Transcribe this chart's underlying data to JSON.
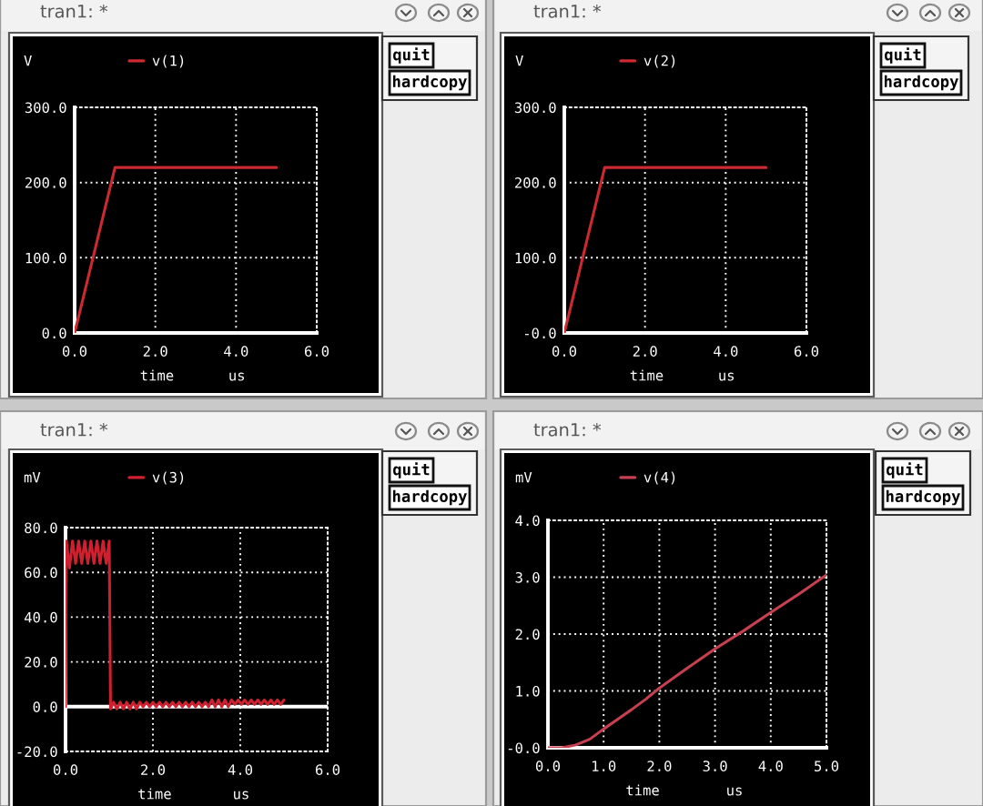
{
  "chart_data": [
    {
      "type": "line",
      "title": "tran1: *",
      "ylabel": "V",
      "xlabel": "time",
      "annotations": [
        "us",
        "quit",
        "hardcopy"
      ],
      "legend": "top",
      "grid": true,
      "x": [
        0,
        1.0,
        5.0
      ],
      "series": [
        {
          "name": "v(1)",
          "color": "#cc2a30",
          "values": [
            0,
            220,
            220
          ]
        }
      ],
      "xlim": [
        0,
        6
      ],
      "xticks": [
        {
          "value": 0,
          "label": "0.0"
        },
        {
          "value": 2,
          "label": "2.0"
        },
        {
          "value": 4,
          "label": "4.0"
        },
        {
          "value": 6,
          "label": "6.0"
        }
      ],
      "ylim": [
        0,
        300
      ],
      "yticks": [
        {
          "value": 0,
          "label": "0.0"
        },
        {
          "value": 100,
          "label": "100.0"
        },
        {
          "value": 200,
          "label": "200.0"
        },
        {
          "value": 300,
          "label": "300.0"
        }
      ]
    },
    {
      "type": "line",
      "title": "tran1: *",
      "ylabel": "V",
      "xlabel": "time",
      "annotations": [
        "us",
        "quit",
        "hardcopy"
      ],
      "legend": "top",
      "grid": true,
      "x": [
        0,
        1.0,
        5.0
      ],
      "series": [
        {
          "name": "v(2)",
          "color": "#cc2a30",
          "values": [
            0,
            220,
            220
          ]
        }
      ],
      "xlim": [
        0,
        6
      ],
      "xticks": [
        {
          "value": 0,
          "label": "0.0"
        },
        {
          "value": 2,
          "label": "2.0"
        },
        {
          "value": 4,
          "label": "4.0"
        },
        {
          "value": 6,
          "label": "6.0"
        }
      ],
      "ylim": [
        0,
        300
      ],
      "yticks": [
        {
          "value": 0,
          "label": "-0.0"
        },
        {
          "value": 100,
          "label": "100.0"
        },
        {
          "value": 200,
          "label": "200.0"
        },
        {
          "value": 300,
          "label": "300.0"
        }
      ]
    },
    {
      "type": "line",
      "title": "tran1: *",
      "ylabel": "mV",
      "xlabel": "time",
      "annotations": [
        "us",
        "quit",
        "hardcopy"
      ],
      "legend": "top",
      "grid": true,
      "x": [
        0,
        0.02,
        0.09,
        0.16,
        0.23,
        0.3,
        0.37,
        0.44,
        0.51,
        0.58,
        0.65,
        0.72,
        0.79,
        0.86,
        0.93,
        1.0,
        1.03,
        1.1,
        1.175,
        1.25,
        1.325,
        1.4,
        1.475,
        1.55,
        1.625,
        1.7,
        1.775,
        1.85,
        1.925,
        2.0,
        2.075,
        2.15,
        2.225,
        2.3,
        2.375,
        2.45,
        2.525,
        2.6,
        2.675,
        2.75,
        2.825,
        2.9,
        2.975,
        3.05,
        3.125,
        3.2,
        3.275,
        3.35,
        3.425,
        3.5,
        3.575,
        3.65,
        3.725,
        3.8,
        3.875,
        3.95,
        4.025,
        4.1,
        4.175,
        4.25,
        4.325,
        4.4,
        4.475,
        4.55,
        4.625,
        4.7,
        4.775,
        4.85,
        4.925,
        5.0
      ],
      "series": [
        {
          "name": "v(3)",
          "color": "#d02030",
          "values": [
            0,
            74,
            62,
            74,
            64,
            74,
            64,
            74,
            64,
            74,
            64,
            74,
            64,
            74,
            64,
            74,
            -1,
            2,
            -1,
            2,
            -1,
            2,
            -1,
            2,
            -1,
            2,
            0,
            2,
            0,
            2,
            0,
            2,
            0,
            2,
            0,
            2,
            0,
            2,
            0,
            2,
            0,
            2,
            0,
            2,
            0,
            2,
            0,
            3,
            0,
            3,
            0,
            3,
            0,
            3,
            1,
            3,
            1,
            3,
            1,
            3,
            1,
            3,
            1,
            3,
            1,
            3,
            1,
            3,
            1,
            3
          ]
        }
      ],
      "xlim": [
        0,
        6
      ],
      "xticks": [
        {
          "value": 0,
          "label": "0.0"
        },
        {
          "value": 2,
          "label": "2.0"
        },
        {
          "value": 4,
          "label": "4.0"
        },
        {
          "value": 6,
          "label": "6.0"
        }
      ],
      "ylim": [
        -20,
        80
      ],
      "yticks": [
        {
          "value": -20,
          "label": "-20.0"
        },
        {
          "value": 0,
          "label": "0.0"
        },
        {
          "value": 20,
          "label": "20.0"
        },
        {
          "value": 40,
          "label": "40.0"
        },
        {
          "value": 60,
          "label": "60.0"
        },
        {
          "value": 80,
          "label": "80.0"
        }
      ],
      "ref_lines": [
        {
          "axis": "y",
          "value": 0,
          "color": "#ffffff",
          "line_style": "solid"
        }
      ]
    },
    {
      "type": "line",
      "title": "tran1: *",
      "ylabel": "mV",
      "xlabel": "time",
      "annotations": [
        "us",
        "quit",
        "hardcopy"
      ],
      "legend": "top",
      "grid": true,
      "x": [
        0,
        0.25,
        0.5,
        0.75,
        1.0,
        1.25,
        1.5,
        1.75,
        2.0,
        2.5,
        3.0,
        3.5,
        4.0,
        4.5,
        5.0
      ],
      "series": [
        {
          "name": "v(4)",
          "color": "#c84050",
          "values": [
            0,
            0,
            0.05,
            0.15,
            0.33,
            0.5,
            0.67,
            0.85,
            1.05,
            1.4,
            1.74,
            2.05,
            2.38,
            2.7,
            3.04
          ]
        }
      ],
      "xlim": [
        0,
        5
      ],
      "xticks": [
        {
          "value": 0,
          "label": "0.0"
        },
        {
          "value": 1,
          "label": "1.0"
        },
        {
          "value": 2,
          "label": "2.0"
        },
        {
          "value": 3,
          "label": "3.0"
        },
        {
          "value": 4,
          "label": "4.0"
        },
        {
          "value": 5,
          "label": "5.0"
        }
      ],
      "ylim": [
        0,
        4
      ],
      "yticks": [
        {
          "value": 0,
          "label": "-0.0"
        },
        {
          "value": 1,
          "label": "1.0"
        },
        {
          "value": 2,
          "label": "2.0"
        },
        {
          "value": 3,
          "label": "3.0"
        },
        {
          "value": 4,
          "label": "4.0"
        }
      ]
    }
  ]
}
